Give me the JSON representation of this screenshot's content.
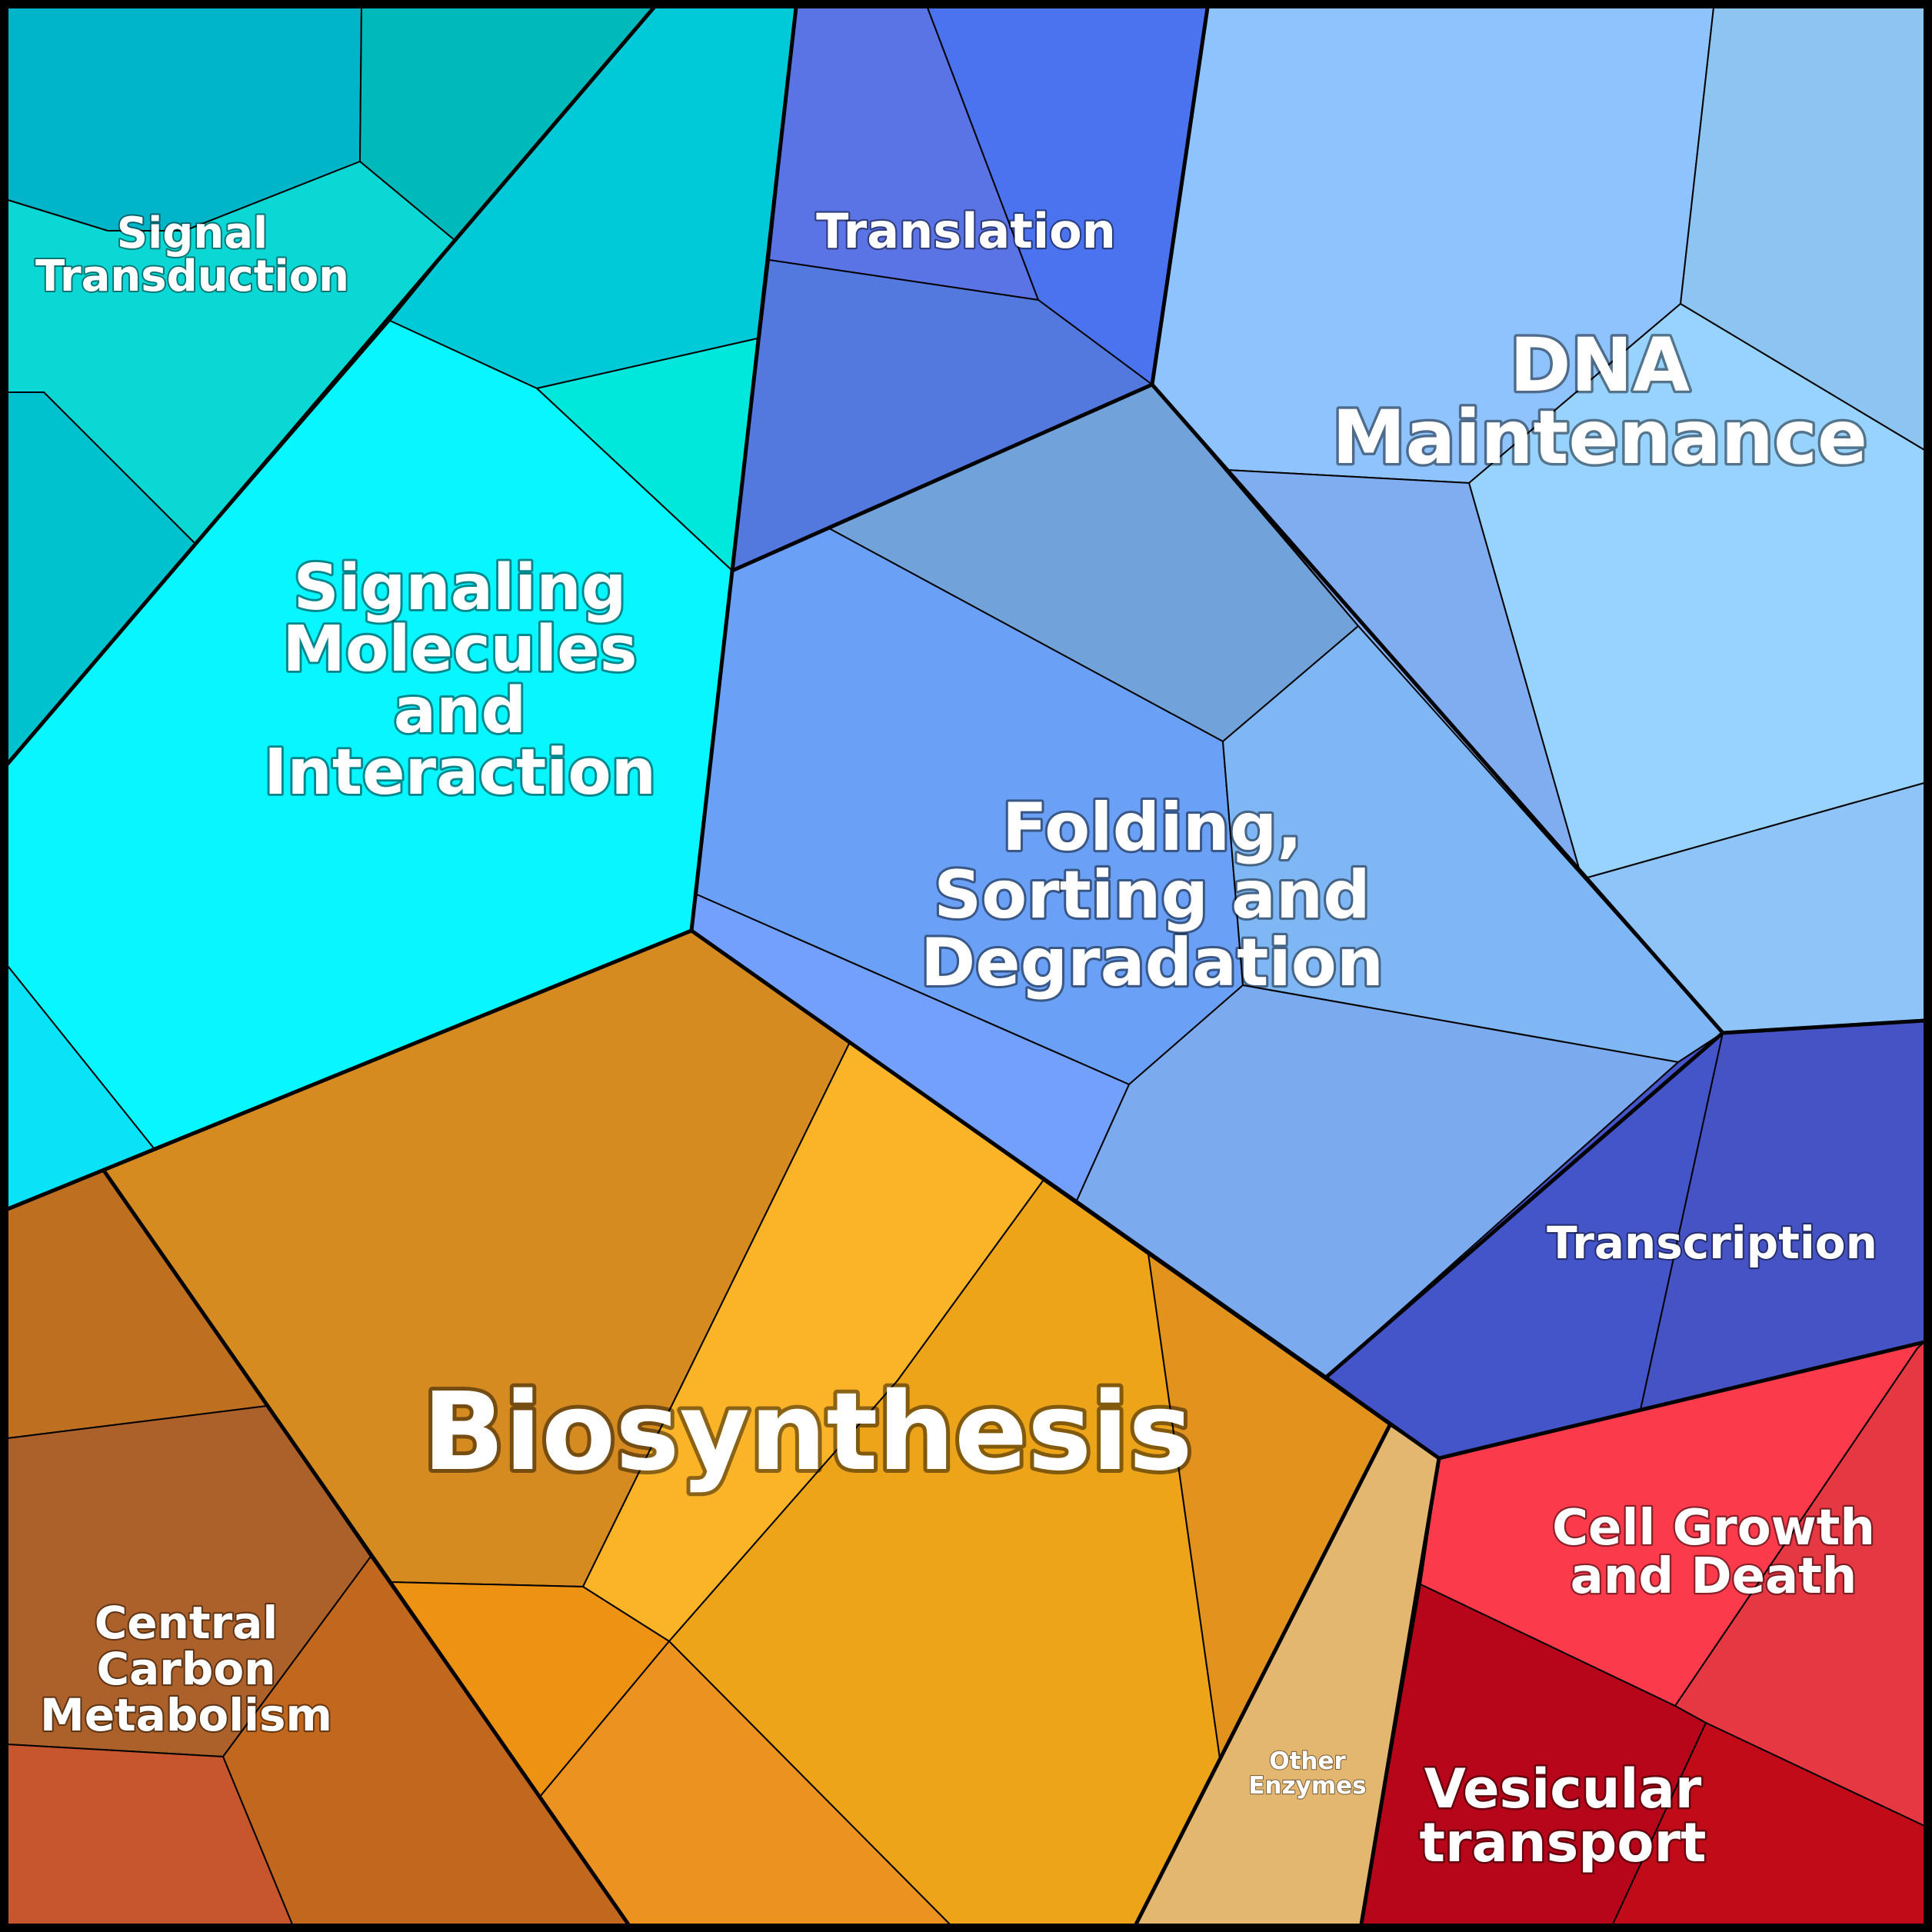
{
  "labels": {
    "signal_transduction": [
      "Signal",
      "Transduction"
    ],
    "signaling_molecules": [
      "Signaling",
      "Molecules",
      "and",
      "Interaction"
    ],
    "translation": [
      "Translation"
    ],
    "dna_maintenance": [
      "DNA",
      "Maintenance"
    ],
    "folding": [
      "Folding,",
      "Sorting and",
      "Degradation"
    ],
    "transcription": [
      "Transcription"
    ],
    "biosynthesis": [
      "Biosynthesis"
    ],
    "central_carbon": [
      "Central",
      "Carbon",
      "Metabolism"
    ],
    "other_enzymes": [
      "Other",
      "Enzymes"
    ],
    "cell_growth": [
      "Cell Growth",
      "and Death"
    ],
    "vesicular": [
      "Vesicular",
      "transport"
    ]
  },
  "colors": {
    "frame": "#000000",
    "label_text": "#ffffff",
    "cyan_group": "#08f6ff",
    "blue_group": "#6aa0f6",
    "light_blue_group": "#8fc3fd",
    "indigo_group": "#4454c9",
    "orange_group": "#d58b1f",
    "brown_group": "#ab6129",
    "red_group": "#fb3b4c",
    "dark_red_group": "#b7051a",
    "tan": "#e3b770"
  }
}
